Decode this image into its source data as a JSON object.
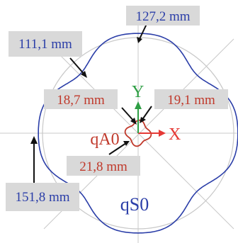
{
  "labels": {
    "top": "127,2 mm",
    "upper_left": "111,1 mm",
    "inner_left": "18,7 mm",
    "inner_right": "19,1 mm",
    "inner_bottom": "21,8 mm",
    "left": "151,8 mm"
  },
  "curves": {
    "inner": "qA0",
    "outer": "qS0"
  },
  "axes": {
    "x": "X",
    "y": "Y"
  },
  "colors": {
    "outer_curve": "#2b3ea8",
    "inner_curve": "#c0392b",
    "x_axis": "#e53935",
    "y_axis": "#2e9e44",
    "label_bg": "#d9d9d9"
  }
}
